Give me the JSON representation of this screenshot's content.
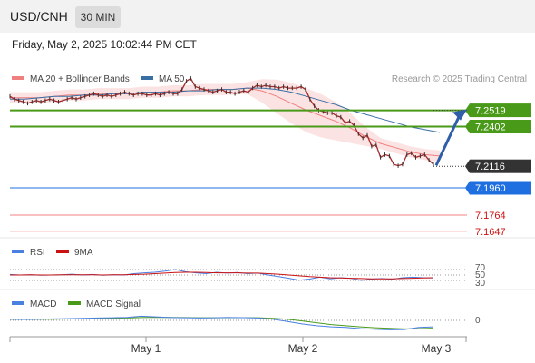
{
  "header": {
    "pair": "USD/CNH",
    "timeframe": "30 MIN",
    "timestamp": "Friday, May 2, 2025 10:02:44 PM CET"
  },
  "colors": {
    "price": "#a52a2a",
    "bollinger": "#f08080",
    "ma50": "#3a6fa5",
    "support_resistance": "#4a9a1a",
    "current": "#333333",
    "target": "#1f6fe0",
    "red_levels": "#f08080",
    "rsi": "#4a80e0",
    "rsi_ma": "#cc1111",
    "macd": "#4a80e0",
    "macd_signal": "#4a9a1a"
  },
  "chart_data": [
    {
      "type": "line",
      "legend": [
        "MA 20 + Bollinger Bands",
        "MA 50"
      ],
      "credit": "Research © 2025 Trading Central",
      "x_ticks": [
        "May 1",
        "May 2",
        "May 3"
      ],
      "price_levels": [
        {
          "label": "7.2519",
          "value": 7.2519,
          "kind": "resistance"
        },
        {
          "label": "7.2402",
          "value": 7.2402,
          "kind": "resistance"
        },
        {
          "label": "7.2116",
          "value": 7.2116,
          "kind": "current"
        },
        {
          "label": "7.1960",
          "value": 7.196,
          "kind": "target"
        },
        {
          "label": "7.1764",
          "value": 7.1764,
          "kind": "support"
        },
        {
          "label": "7.1647",
          "value": 7.1647,
          "kind": "support"
        }
      ],
      "ylim": [
        7.16,
        7.27
      ],
      "series": [
        {
          "name": "Price",
          "values": [
            7.262,
            7.26,
            7.259,
            7.258,
            7.257,
            7.258,
            7.259,
            7.258,
            7.259,
            7.26,
            7.259,
            7.258,
            7.259,
            7.26,
            7.261,
            7.26,
            7.261,
            7.262,
            7.263,
            7.264,
            7.263,
            7.262,
            7.263,
            7.262,
            7.263,
            7.264,
            7.265,
            7.264,
            7.263,
            7.264,
            7.264,
            7.263,
            7.263,
            7.264,
            7.263,
            7.264,
            7.265,
            7.264,
            7.264,
            7.267,
            7.273,
            7.275,
            7.269,
            7.268,
            7.267,
            7.266,
            7.265,
            7.266,
            7.267,
            7.265,
            7.265,
            7.264,
            7.265,
            7.266,
            7.265,
            7.268,
            7.27,
            7.269,
            7.27,
            7.269,
            7.269,
            7.268,
            7.269,
            7.268,
            7.268,
            7.268,
            7.269,
            7.267,
            7.26,
            7.255,
            7.252,
            7.251,
            7.25,
            7.25,
            7.248,
            7.247,
            7.243,
            7.244,
            7.241,
            7.235,
            7.232,
            7.234,
            7.226,
            7.227,
            7.218,
            7.22,
            7.219,
            7.213,
            7.212,
            7.213,
            7.22,
            7.221,
            7.218,
            7.219,
            7.22,
            7.216,
            7.213
          ]
        },
        {
          "name": "MA 20",
          "values": [
            7.261,
            7.261,
            7.261,
            7.262,
            7.263,
            7.263,
            7.264,
            7.264,
            7.264,
            7.265,
            7.265,
            7.266,
            7.266,
            7.267,
            7.267,
            7.267,
            7.268,
            7.266,
            7.262,
            7.257,
            7.252,
            7.248,
            7.244,
            7.239,
            7.233,
            7.228,
            7.225,
            7.222,
            7.22,
            7.219
          ]
        },
        {
          "name": "MA 50",
          "values": [
            7.26,
            7.26,
            7.261,
            7.262,
            7.262,
            7.263,
            7.263,
            7.264,
            7.264,
            7.265,
            7.265,
            7.265,
            7.266,
            7.266,
            7.267,
            7.267,
            7.268,
            7.268,
            7.267,
            7.265,
            7.262,
            7.259,
            7.256,
            7.252,
            7.249,
            7.246,
            7.243,
            7.24,
            7.238,
            7.236
          ]
        }
      ]
    },
    {
      "type": "line",
      "legend": [
        "RSI",
        "9MA"
      ],
      "y_ticks": [
        "70",
        "50",
        "30"
      ],
      "ylim": [
        0,
        100
      ],
      "series": [
        {
          "name": "RSI",
          "values": [
            52,
            50,
            51,
            49,
            50,
            51,
            53,
            50,
            52,
            49,
            51,
            50,
            55,
            58,
            60,
            64,
            70,
            62,
            58,
            55,
            60,
            57,
            59,
            55,
            57,
            50,
            44,
            38,
            31,
            35,
            42,
            36,
            40,
            38,
            30,
            35,
            37,
            34,
            40,
            42,
            40,
            39
          ]
        },
        {
          "name": "9MA",
          "values": [
            50,
            50,
            51,
            50,
            50,
            51,
            51,
            51,
            51,
            50,
            51,
            51,
            52,
            53,
            55,
            57,
            59,
            60,
            60,
            59,
            58,
            58,
            58,
            57,
            57,
            55,
            53,
            50,
            47,
            44,
            42,
            40,
            39,
            38,
            37,
            36,
            36,
            36,
            37,
            38,
            39,
            40
          ]
        }
      ]
    },
    {
      "type": "line",
      "legend": [
        "MACD",
        "MACD Signal"
      ],
      "y_ticks": [
        "0"
      ],
      "ylim": [
        -1,
        1
      ],
      "series": [
        {
          "name": "MACD",
          "values": [
            0.1,
            0.08,
            0.09,
            0.12,
            0.15,
            0.18,
            0.2,
            0.22,
            0.25,
            0.35,
            0.3,
            0.24,
            0.22,
            0.2,
            0.22,
            0.25,
            0.23,
            0.2,
            0.1,
            -0.1,
            -0.3,
            -0.45,
            -0.55,
            -0.6,
            -0.7,
            -0.75,
            -0.8,
            -0.78,
            -0.6,
            -0.55
          ]
        },
        {
          "name": "MACD Signal",
          "values": [
            0.1,
            0.09,
            0.09,
            0.1,
            0.12,
            0.14,
            0.16,
            0.18,
            0.2,
            0.24,
            0.26,
            0.25,
            0.24,
            0.22,
            0.22,
            0.23,
            0.23,
            0.22,
            0.18,
            0.1,
            -0.05,
            -0.2,
            -0.35,
            -0.45,
            -0.55,
            -0.62,
            -0.68,
            -0.72,
            -0.7,
            -0.66
          ]
        }
      ]
    }
  ]
}
